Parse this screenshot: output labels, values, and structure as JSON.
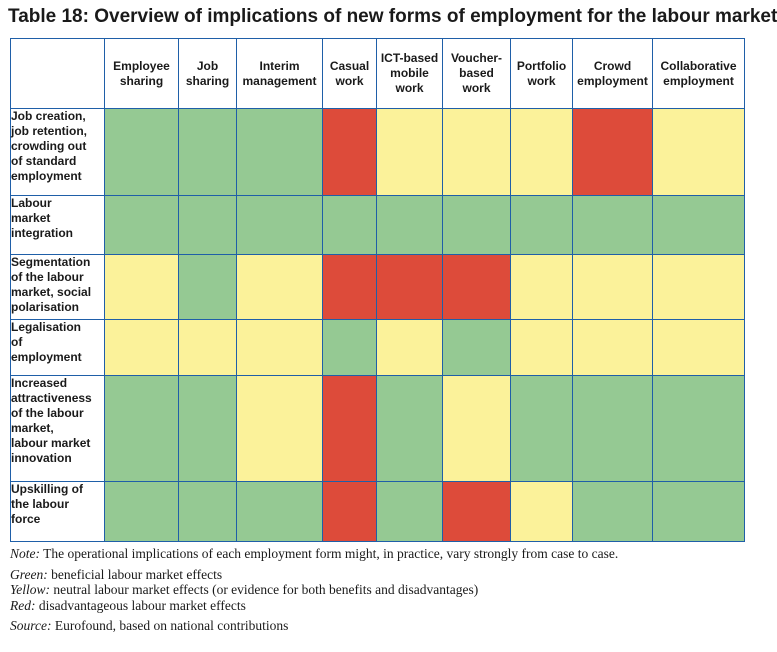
{
  "title": "Table 18: Overview of implications of new forms of employment for the labour market",
  "columns": [
    {
      "key": "employee_sharing",
      "lines": [
        "Employee",
        "sharing"
      ]
    },
    {
      "key": "job_sharing",
      "lines": [
        "Job",
        "sharing"
      ]
    },
    {
      "key": "interim_management",
      "lines": [
        "Interim",
        "management"
      ]
    },
    {
      "key": "casual_work",
      "lines": [
        "Casual",
        "work"
      ]
    },
    {
      "key": "ict_based_mobile_work",
      "lines": [
        "ICT-based",
        "mobile",
        "work"
      ]
    },
    {
      "key": "voucher_based_work",
      "lines": [
        "Voucher-",
        "based",
        "work"
      ]
    },
    {
      "key": "portfolio_work",
      "lines": [
        "Portfolio",
        "work"
      ]
    },
    {
      "key": "crowd_employment",
      "lines": [
        "Crowd",
        "employment"
      ]
    },
    {
      "key": "collaborative_employment",
      "lines": [
        "Collaborative",
        "employment"
      ]
    }
  ],
  "rows": [
    {
      "lines": [
        "Job creation,",
        "job retention,",
        "crowding out",
        "of standard",
        "employment"
      ],
      "ratings": [
        "green",
        "green",
        "green",
        "red",
        "yellow",
        "yellow",
        "yellow",
        "red",
        "yellow"
      ]
    },
    {
      "lines": [
        "Labour",
        "market",
        "integration"
      ],
      "ratings": [
        "green",
        "green",
        "green",
        "green",
        "green",
        "green",
        "green",
        "green",
        "green"
      ]
    },
    {
      "lines": [
        "Segmentation",
        "of the labour",
        "market, social",
        "polarisation"
      ],
      "ratings": [
        "yellow",
        "green",
        "yellow",
        "red",
        "red",
        "red",
        "yellow",
        "yellow",
        "yellow"
      ]
    },
    {
      "lines": [
        "Legalisation",
        "of",
        "employment"
      ],
      "ratings": [
        "yellow",
        "yellow",
        "yellow",
        "green",
        "yellow",
        "green",
        "yellow",
        "yellow",
        "yellow"
      ]
    },
    {
      "lines": [
        "Increased",
        "attractiveness",
        "of the labour",
        "market,",
        "labour market",
        "innovation"
      ],
      "ratings": [
        "green",
        "green",
        "yellow",
        "red",
        "green",
        "yellow",
        "green",
        "green",
        "green"
      ]
    },
    {
      "lines": [
        "Upskilling of",
        "the labour",
        "force"
      ],
      "ratings": [
        "green",
        "green",
        "green",
        "red",
        "green",
        "red",
        "yellow",
        "green",
        "green"
      ]
    }
  ],
  "colors": {
    "green": "#95c993",
    "yellow": "#fbf29a",
    "red": "#dd4b3a",
    "border": "#1f5fa8"
  },
  "notes": {
    "note_label": "Note:",
    "note_text": " The operational implications of each employment form might, in practice, vary strongly from case to case.",
    "green_label": "Green:",
    "green_text": " beneficial labour market effects",
    "yellow_label": "Yellow:",
    "yellow_text": " neutral labour market effects (or evidence for both benefits and disadvantages)",
    "red_label": "Red:",
    "red_text": " disadvantageous labour market effects",
    "source_label": "Source:",
    "source_text": " Eurofound, based on national contributions"
  }
}
